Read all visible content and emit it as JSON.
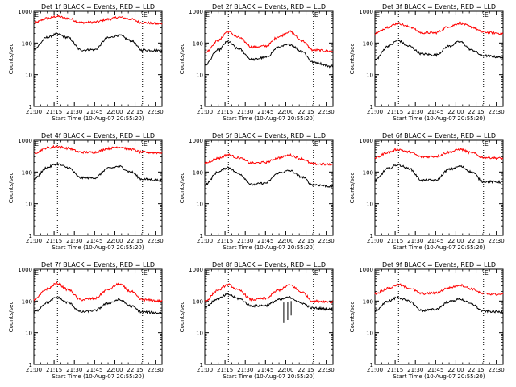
{
  "colors": {
    "background": "#ffffff",
    "events": "#000000",
    "lld": "#ff0000",
    "axis": "#000000"
  },
  "common": {
    "xlabel": "Start Time (10-Aug-07 20:55:20)",
    "ylabel": "Counts/sec",
    "x_ticks": [
      "21:00",
      "21:15",
      "21:30",
      "21:45",
      "22:00",
      "22:15",
      "22:30"
    ],
    "y_ticks": [
      "1",
      "10",
      "100",
      "1000"
    ],
    "event_marker": "E"
  },
  "chart_data": [
    {
      "type": "line",
      "title": "Det 1f BLACK = Events, RED = LLD",
      "xlim_min": [
        0,
        95
      ],
      "ylim": [
        1,
        1000
      ],
      "yscale": "log",
      "vlines_min": [
        17.5,
        80.5
      ],
      "markers_min": [
        0,
        80.5
      ],
      "series": [
        {
          "color": "red",
          "points": [
            [
              0,
              430
            ],
            [
              10,
              600
            ],
            [
              17,
              690
            ],
            [
              25,
              600
            ],
            [
              35,
              440
            ],
            [
              45,
              450
            ],
            [
              55,
              560
            ],
            [
              63,
              650
            ],
            [
              72,
              560
            ],
            [
              80,
              440
            ],
            [
              95,
              400
            ]
          ]
        },
        {
          "color": "black",
          "points": [
            [
              0,
              65
            ],
            [
              10,
              150
            ],
            [
              17,
              190
            ],
            [
              25,
              150
            ],
            [
              35,
              60
            ],
            [
              45,
              62
            ],
            [
              55,
              145
            ],
            [
              63,
              175
            ],
            [
              72,
              120
            ],
            [
              80,
              60
            ],
            [
              95,
              58
            ]
          ]
        }
      ]
    },
    {
      "type": "line",
      "title": "Det 2f BLACK = Events, RED = LLD",
      "xlim_min": [
        0,
        95
      ],
      "ylim": [
        1,
        1000
      ],
      "yscale": "log",
      "vlines_min": [
        17.5,
        80.5
      ],
      "markers_min": [
        0,
        80.5
      ],
      "series": [
        {
          "color": "red",
          "points": [
            [
              0,
              50
            ],
            [
              10,
              120
            ],
            [
              17,
              230
            ],
            [
              25,
              150
            ],
            [
              35,
              75
            ],
            [
              45,
              80
            ],
            [
              55,
              160
            ],
            [
              63,
              230
            ],
            [
              72,
              120
            ],
            [
              80,
              60
            ],
            [
              95,
              55
            ]
          ]
        },
        {
          "color": "black",
          "points": [
            [
              0,
              20
            ],
            [
              10,
              60
            ],
            [
              17,
              110
            ],
            [
              25,
              65
            ],
            [
              35,
              30
            ],
            [
              45,
              35
            ],
            [
              55,
              75
            ],
            [
              63,
              90
            ],
            [
              72,
              55
            ],
            [
              80,
              25
            ],
            [
              95,
              18
            ]
          ]
        }
      ]
    },
    {
      "type": "line",
      "title": "Det 3f BLACK = Events, RED = LLD",
      "xlim_min": [
        0,
        95
      ],
      "ylim": [
        1,
        1000
      ],
      "yscale": "log",
      "vlines_min": [
        17.5,
        80.5
      ],
      "markers_min": [
        0,
        80.5
      ],
      "series": [
        {
          "color": "red",
          "points": [
            [
              0,
              200
            ],
            [
              10,
              320
            ],
            [
              17,
              420
            ],
            [
              25,
              330
            ],
            [
              35,
              210
            ],
            [
              45,
              210
            ],
            [
              55,
              330
            ],
            [
              63,
              420
            ],
            [
              72,
              320
            ],
            [
              80,
              220
            ],
            [
              95,
              200
            ]
          ]
        },
        {
          "color": "black",
          "points": [
            [
              0,
              30
            ],
            [
              10,
              80
            ],
            [
              17,
              120
            ],
            [
              25,
              80
            ],
            [
              35,
              45
            ],
            [
              45,
              42
            ],
            [
              55,
              80
            ],
            [
              63,
              110
            ],
            [
              72,
              60
            ],
            [
              80,
              40
            ],
            [
              95,
              35
            ]
          ]
        }
      ]
    },
    {
      "type": "line",
      "title": "Det 4f BLACK = Events, RED = LLD",
      "xlim_min": [
        0,
        95
      ],
      "ylim": [
        1,
        1000
      ],
      "yscale": "log",
      "vlines_min": [
        17.5,
        80.5
      ],
      "markers_min": [
        0,
        80.5
      ],
      "series": [
        {
          "color": "red",
          "points": [
            [
              0,
              400
            ],
            [
              10,
              580
            ],
            [
              17,
              640
            ],
            [
              25,
              560
            ],
            [
              35,
              420
            ],
            [
              45,
              420
            ],
            [
              55,
              550
            ],
            [
              63,
              620
            ],
            [
              72,
              520
            ],
            [
              80,
              420
            ],
            [
              95,
              400
            ]
          ]
        },
        {
          "color": "black",
          "points": [
            [
              0,
              60
            ],
            [
              10,
              140
            ],
            [
              17,
              180
            ],
            [
              25,
              140
            ],
            [
              35,
              65
            ],
            [
              45,
              65
            ],
            [
              55,
              130
            ],
            [
              63,
              150
            ],
            [
              72,
              100
            ],
            [
              80,
              60
            ],
            [
              95,
              55
            ]
          ]
        }
      ]
    },
    {
      "type": "line",
      "title": "Det 5f BLACK = Events, RED = LLD",
      "xlim_min": [
        0,
        95
      ],
      "ylim": [
        1,
        1000
      ],
      "yscale": "log",
      "vlines_min": [
        17.5,
        80.5
      ],
      "markers_min": [
        0,
        80.5
      ],
      "series": [
        {
          "color": "red",
          "points": [
            [
              0,
              190
            ],
            [
              10,
              270
            ],
            [
              17,
              350
            ],
            [
              25,
              280
            ],
            [
              35,
              190
            ],
            [
              45,
              200
            ],
            [
              55,
              280
            ],
            [
              63,
              340
            ],
            [
              72,
              260
            ],
            [
              80,
              180
            ],
            [
              95,
              170
            ]
          ]
        },
        {
          "color": "black",
          "points": [
            [
              0,
              40
            ],
            [
              10,
              100
            ],
            [
              17,
              140
            ],
            [
              25,
              90
            ],
            [
              35,
              40
            ],
            [
              45,
              45
            ],
            [
              55,
              95
            ],
            [
              63,
              110
            ],
            [
              72,
              70
            ],
            [
              80,
              40
            ],
            [
              95,
              35
            ]
          ]
        }
      ]
    },
    {
      "type": "line",
      "title": "Det 6f BLACK = Events, RED = LLD",
      "xlim_min": [
        0,
        95
      ],
      "ylim": [
        1,
        1000
      ],
      "yscale": "log",
      "vlines_min": [
        17.5,
        80.5
      ],
      "markers_min": [
        0,
        80.5
      ],
      "series": [
        {
          "color": "red",
          "points": [
            [
              0,
              280
            ],
            [
              10,
              420
            ],
            [
              17,
              520
            ],
            [
              25,
              430
            ],
            [
              35,
              300
            ],
            [
              45,
              310
            ],
            [
              55,
              420
            ],
            [
              63,
              520
            ],
            [
              72,
              400
            ],
            [
              80,
              290
            ],
            [
              95,
              270
            ]
          ]
        },
        {
          "color": "black",
          "points": [
            [
              0,
              55
            ],
            [
              10,
              130
            ],
            [
              17,
              170
            ],
            [
              25,
              130
            ],
            [
              35,
              55
            ],
            [
              45,
              55
            ],
            [
              55,
              120
            ],
            [
              63,
              150
            ],
            [
              72,
              100
            ],
            [
              80,
              50
            ],
            [
              95,
              48
            ]
          ]
        }
      ]
    },
    {
      "type": "line",
      "title": "Det 7f BLACK = Events, RED = LLD",
      "xlim_min": [
        0,
        95
      ],
      "ylim": [
        1,
        1000
      ],
      "yscale": "log",
      "vlines_min": [
        17.5,
        80.5
      ],
      "markers_min": [
        0,
        80.5
      ],
      "series": [
        {
          "color": "red",
          "points": [
            [
              0,
              110
            ],
            [
              10,
              240
            ],
            [
              17,
              360
            ],
            [
              25,
              230
            ],
            [
              35,
              110
            ],
            [
              45,
              120
            ],
            [
              55,
              230
            ],
            [
              63,
              340
            ],
            [
              72,
              200
            ],
            [
              80,
              110
            ],
            [
              95,
              100
            ]
          ]
        },
        {
          "color": "black",
          "points": [
            [
              0,
              45
            ],
            [
              10,
              90
            ],
            [
              17,
              130
            ],
            [
              25,
              90
            ],
            [
              35,
              45
            ],
            [
              45,
              50
            ],
            [
              55,
              85
            ],
            [
              63,
              110
            ],
            [
              72,
              70
            ],
            [
              80,
              45
            ],
            [
              95,
              42
            ]
          ]
        }
      ]
    },
    {
      "type": "line",
      "title": "Det 8f BLACK = Events, RED = LLD",
      "xlim_min": [
        0,
        95
      ],
      "ylim": [
        1,
        1000
      ],
      "yscale": "log",
      "vlines_min": [
        17.5,
        80.5
      ],
      "markers_min": [
        0,
        80.5
      ],
      "series": [
        {
          "color": "red",
          "points": [
            [
              0,
              100
            ],
            [
              10,
              220
            ],
            [
              17,
              330
            ],
            [
              25,
              220
            ],
            [
              35,
              110
            ],
            [
              45,
              120
            ],
            [
              55,
              220
            ],
            [
              63,
              320
            ],
            [
              72,
              190
            ],
            [
              80,
              100
            ],
            [
              95,
              95
            ]
          ]
        },
        {
          "color": "black",
          "points": [
            [
              0,
              65
            ],
            [
              10,
              120
            ],
            [
              17,
              160
            ],
            [
              25,
              120
            ],
            [
              35,
              70
            ],
            [
              45,
              72
            ],
            [
              55,
              110
            ],
            [
              63,
              130
            ],
            [
              72,
              85
            ],
            [
              80,
              60
            ],
            [
              95,
              55
            ]
          ]
        }
      ],
      "spikes": [
        {
          "x": 58.5,
          "from": 90,
          "to": 20
        },
        {
          "x": 61.5,
          "from": 95,
          "to": 25
        },
        {
          "x": 64.0,
          "from": 100,
          "to": 35
        }
      ]
    },
    {
      "type": "line",
      "title": "Det 9f BLACK = Events, RED = LLD",
      "xlim_min": [
        0,
        95
      ],
      "ylim": [
        1,
        1000
      ],
      "yscale": "log",
      "vlines_min": [
        17.5,
        80.5
      ],
      "markers_min": [
        0,
        80.5
      ],
      "series": [
        {
          "color": "red",
          "points": [
            [
              0,
              170
            ],
            [
              10,
              250
            ],
            [
              17,
              330
            ],
            [
              25,
              260
            ],
            [
              35,
              170
            ],
            [
              45,
              180
            ],
            [
              55,
              260
            ],
            [
              63,
              320
            ],
            [
              72,
              240
            ],
            [
              80,
              170
            ],
            [
              95,
              160
            ]
          ]
        },
        {
          "color": "black",
          "points": [
            [
              0,
              50
            ],
            [
              10,
              100
            ],
            [
              17,
              130
            ],
            [
              25,
              100
            ],
            [
              35,
              50
            ],
            [
              45,
              55
            ],
            [
              55,
              95
            ],
            [
              63,
              115
            ],
            [
              72,
              80
            ],
            [
              80,
              48
            ],
            [
              95,
              45
            ]
          ]
        }
      ]
    }
  ]
}
